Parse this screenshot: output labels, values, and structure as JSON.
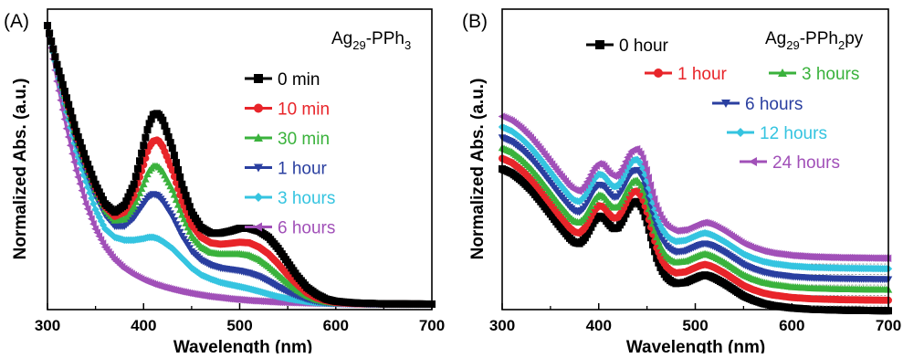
{
  "chart_data": [
    {
      "type": "line",
      "panel_label": "(A)",
      "compound": {
        "main": "Ag",
        "sub": "29",
        "rest": "-PPh",
        "sub2": "3",
        "rest2": ""
      },
      "xlabel": "Wavelength (nm)",
      "ylabel": "Normalized Abs. (a.u.)",
      "xlim": [
        300,
        700
      ],
      "xticks": [
        "300",
        "400",
        "500",
        "600",
        "700"
      ],
      "legend_position": "right",
      "series": [
        {
          "name": "0 min",
          "color": "#000000",
          "marker": "square",
          "x": [
            300,
            305,
            310,
            320,
            330,
            340,
            350,
            360,
            370,
            380,
            390,
            400,
            405,
            410,
            415,
            420,
            430,
            440,
            450,
            460,
            470,
            480,
            490,
            500,
            510,
            520,
            530,
            540,
            550,
            560,
            570,
            580,
            590,
            600,
            620,
            650,
            700
          ],
          "y": [
            1.0,
            0.93,
            0.86,
            0.74,
            0.62,
            0.52,
            0.43,
            0.36,
            0.33,
            0.355,
            0.43,
            0.57,
            0.64,
            0.68,
            0.685,
            0.66,
            0.56,
            0.43,
            0.33,
            0.275,
            0.255,
            0.255,
            0.262,
            0.272,
            0.272,
            0.262,
            0.24,
            0.2,
            0.15,
            0.1,
            0.06,
            0.035,
            0.018,
            0.01,
            0.004,
            0.001,
            0.0
          ]
        },
        {
          "name": "10 min",
          "color": "#e8252a",
          "marker": "circle",
          "x": [
            300,
            305,
            310,
            320,
            330,
            340,
            350,
            360,
            370,
            380,
            390,
            400,
            405,
            410,
            415,
            420,
            430,
            440,
            450,
            460,
            470,
            480,
            490,
            500,
            510,
            520,
            530,
            540,
            550,
            560,
            570,
            580,
            590,
            600,
            620,
            650,
            700
          ],
          "y": [
            1.0,
            0.93,
            0.86,
            0.73,
            0.61,
            0.51,
            0.42,
            0.35,
            0.315,
            0.33,
            0.39,
            0.5,
            0.56,
            0.585,
            0.59,
            0.565,
            0.48,
            0.37,
            0.285,
            0.24,
            0.22,
            0.215,
            0.218,
            0.222,
            0.22,
            0.205,
            0.18,
            0.145,
            0.105,
            0.07,
            0.04,
            0.022,
            0.012,
            0.006,
            0.002,
            0.001,
            0.0
          ]
        },
        {
          "name": "30 min",
          "color": "#3ab23c",
          "marker": "triangle-up",
          "x": [
            300,
            305,
            310,
            320,
            330,
            340,
            350,
            360,
            370,
            380,
            390,
            400,
            405,
            410,
            415,
            420,
            430,
            440,
            450,
            460,
            470,
            480,
            490,
            500,
            510,
            520,
            530,
            540,
            550,
            560,
            570,
            580,
            590,
            600,
            620,
            650,
            700
          ],
          "y": [
            1.0,
            0.93,
            0.86,
            0.72,
            0.6,
            0.5,
            0.41,
            0.34,
            0.3,
            0.305,
            0.35,
            0.43,
            0.475,
            0.495,
            0.495,
            0.475,
            0.41,
            0.32,
            0.245,
            0.205,
            0.185,
            0.18,
            0.18,
            0.18,
            0.175,
            0.16,
            0.135,
            0.105,
            0.075,
            0.05,
            0.03,
            0.016,
            0.008,
            0.004,
            0.001,
            0.0,
            0.0
          ]
        },
        {
          "name": "1 hour",
          "color": "#2a3fa0",
          "marker": "triangle-down",
          "x": [
            300,
            305,
            310,
            320,
            330,
            340,
            350,
            360,
            370,
            380,
            390,
            400,
            405,
            410,
            415,
            420,
            430,
            440,
            450,
            460,
            470,
            480,
            490,
            500,
            510,
            520,
            530,
            540,
            550,
            560,
            570,
            580,
            590,
            600,
            620,
            650,
            700
          ],
          "y": [
            1.0,
            0.93,
            0.85,
            0.71,
            0.58,
            0.48,
            0.39,
            0.32,
            0.28,
            0.28,
            0.31,
            0.36,
            0.385,
            0.395,
            0.39,
            0.37,
            0.315,
            0.245,
            0.19,
            0.158,
            0.14,
            0.13,
            0.125,
            0.12,
            0.112,
            0.1,
            0.082,
            0.062,
            0.044,
            0.03,
            0.018,
            0.01,
            0.005,
            0.003,
            0.001,
            0.0,
            0.0
          ]
        },
        {
          "name": "3 hours",
          "color": "#35c4e0",
          "marker": "diamond",
          "x": [
            300,
            305,
            310,
            320,
            330,
            340,
            350,
            360,
            370,
            380,
            390,
            400,
            405,
            410,
            415,
            420,
            430,
            440,
            450,
            460,
            470,
            480,
            490,
            500,
            510,
            520,
            530,
            540,
            550,
            560,
            570,
            580,
            590,
            600,
            620,
            650,
            700
          ],
          "y": [
            1.0,
            0.92,
            0.84,
            0.69,
            0.55,
            0.44,
            0.34,
            0.27,
            0.24,
            0.23,
            0.23,
            0.235,
            0.24,
            0.24,
            0.235,
            0.225,
            0.2,
            0.165,
            0.13,
            0.105,
            0.09,
            0.078,
            0.07,
            0.063,
            0.055,
            0.046,
            0.036,
            0.027,
            0.02,
            0.014,
            0.009,
            0.005,
            0.003,
            0.002,
            0.001,
            0.0,
            0.0
          ]
        },
        {
          "name": "6 hours",
          "color": "#a150b8",
          "marker": "triangle-left",
          "x": [
            300,
            305,
            310,
            320,
            330,
            340,
            350,
            360,
            370,
            380,
            390,
            400,
            410,
            420,
            430,
            440,
            450,
            460,
            470,
            480,
            490,
            500,
            510,
            520,
            530,
            540,
            550,
            560,
            580,
            600,
            620,
            650,
            700
          ],
          "y": [
            1.0,
            0.9,
            0.8,
            0.63,
            0.48,
            0.36,
            0.27,
            0.205,
            0.16,
            0.128,
            0.105,
            0.087,
            0.073,
            0.062,
            0.053,
            0.045,
            0.038,
            0.032,
            0.027,
            0.023,
            0.019,
            0.016,
            0.013,
            0.011,
            0.009,
            0.007,
            0.006,
            0.005,
            0.003,
            0.002,
            0.001,
            0.0,
            0.0
          ]
        }
      ]
    },
    {
      "type": "line",
      "panel_label": "(B)",
      "compound": {
        "main": "Ag",
        "sub": "29",
        "rest": "-PPh",
        "sub2": "2",
        "rest2": "py"
      },
      "xlabel": "Wavelength (nm)",
      "ylabel": "Normalized Abs. (a.u.)",
      "xlim": [
        300,
        700
      ],
      "xticks": [
        "300",
        "400",
        "500",
        "600",
        "700"
      ],
      "legend_position": "top-right",
      "spectrum": {
        "x": [
          300,
          310,
          320,
          330,
          340,
          350,
          360,
          370,
          375,
          380,
          385,
          390,
          395,
          400,
          405,
          410,
          415,
          420,
          425,
          430,
          435,
          440,
          445,
          450,
          455,
          460,
          465,
          470,
          475,
          480,
          490,
          500,
          505,
          510,
          515,
          520,
          530,
          540,
          550,
          560,
          570,
          580,
          600,
          620,
          650,
          680,
          700
        ],
        "y": [
          0.0,
          -0.02,
          -0.055,
          -0.1,
          -0.155,
          -0.215,
          -0.275,
          -0.33,
          -0.35,
          -0.355,
          -0.335,
          -0.295,
          -0.25,
          -0.225,
          -0.23,
          -0.26,
          -0.285,
          -0.28,
          -0.245,
          -0.195,
          -0.16,
          -0.155,
          -0.185,
          -0.255,
          -0.345,
          -0.425,
          -0.48,
          -0.515,
          -0.535,
          -0.545,
          -0.54,
          -0.52,
          -0.51,
          -0.505,
          -0.51,
          -0.52,
          -0.545,
          -0.575,
          -0.605,
          -0.625,
          -0.64,
          -0.65,
          -0.662,
          -0.668,
          -0.672,
          -0.674,
          -0.675
        ]
      },
      "offset_step": 0.05,
      "series": [
        {
          "name": "0 hour",
          "color": "#000000",
          "marker": "square"
        },
        {
          "name": "1 hour",
          "color": "#e8252a",
          "marker": "circle"
        },
        {
          "name": "3 hours",
          "color": "#3ab23c",
          "marker": "triangle-up"
        },
        {
          "name": "6 hours",
          "color": "#2a3fa0",
          "marker": "triangle-down"
        },
        {
          "name": "12 hours",
          "color": "#35c4e0",
          "marker": "diamond"
        },
        {
          "name": "24 hours",
          "color": "#a150b8",
          "marker": "triangle-left"
        }
      ]
    }
  ]
}
